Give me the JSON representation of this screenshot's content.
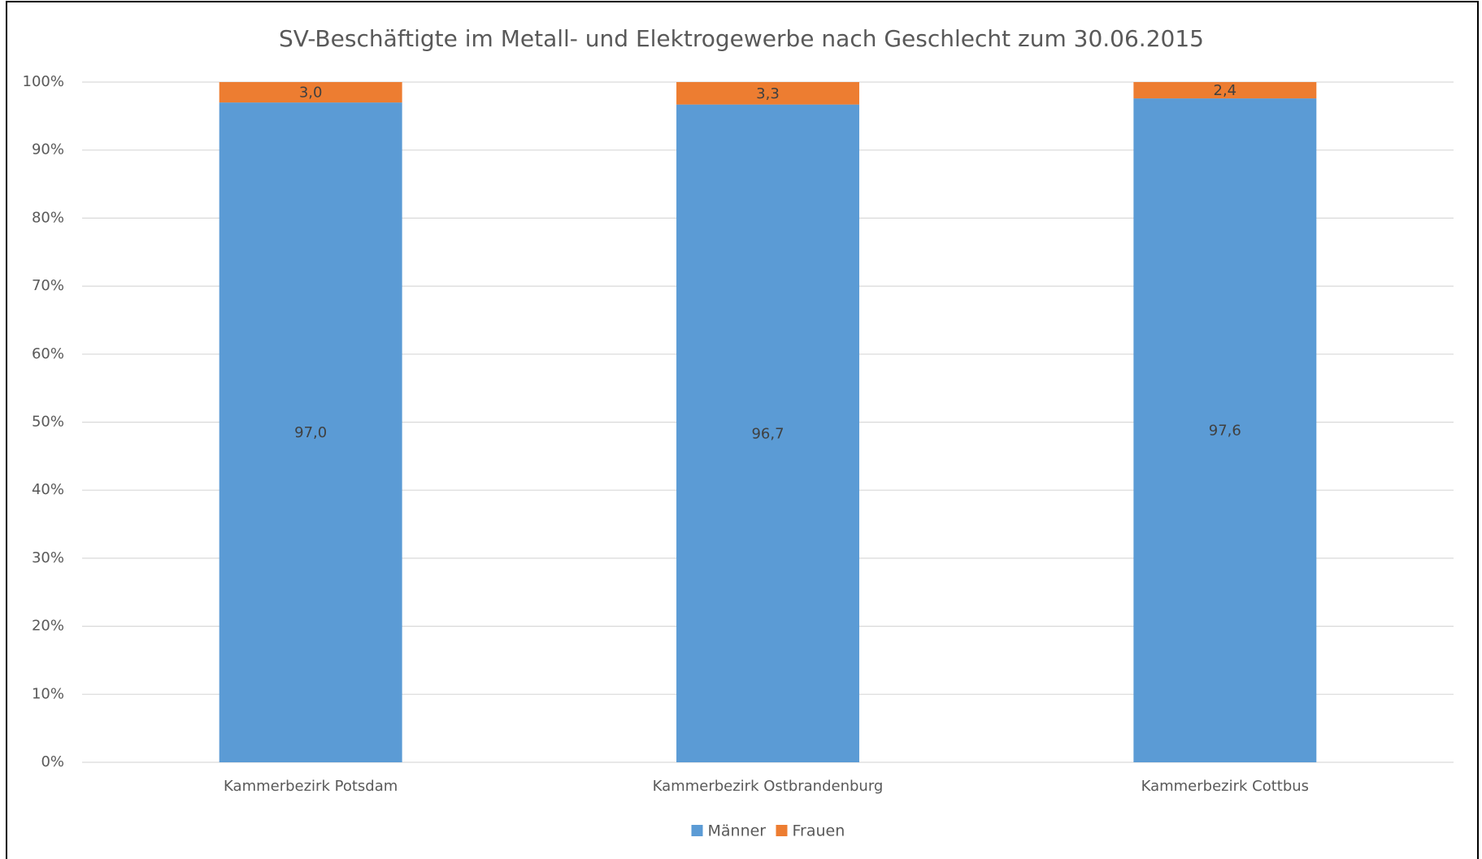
{
  "chart_data": {
    "type": "bar",
    "stacked": true,
    "title": "SV-Beschäftigte im Metall- und Elektrogewerbe nach Geschlecht zum 30.06.2015",
    "categories": [
      "Kammerbezirk Potsdam",
      "Kammerbezirk Ostbrandenburg",
      "Kammerbezirk Cottbus"
    ],
    "series": [
      {
        "name": "Männer",
        "color": "#5b9bd5",
        "values": [
          97.0,
          96.7,
          97.6
        ],
        "value_labels": [
          "97,0",
          "96,7",
          "97,6"
        ]
      },
      {
        "name": "Frauen",
        "color": "#ed7d31",
        "values": [
          3.0,
          3.3,
          2.4
        ],
        "value_labels": [
          "3,0",
          "3,3",
          "2,4"
        ]
      }
    ],
    "ylim": [
      0,
      100
    ],
    "yticks": [
      {
        "value": 0,
        "label": "0%"
      },
      {
        "value": 10,
        "label": "10%"
      },
      {
        "value": 20,
        "label": "20%"
      },
      {
        "value": 30,
        "label": "30%"
      },
      {
        "value": 40,
        "label": "40%"
      },
      {
        "value": 50,
        "label": "50%"
      },
      {
        "value": 60,
        "label": "60%"
      },
      {
        "value": 70,
        "label": "70%"
      },
      {
        "value": 80,
        "label": "80%"
      },
      {
        "value": 90,
        "label": "90%"
      },
      {
        "value": 100,
        "label": "100%"
      }
    ],
    "grid": true,
    "legend": "bottom"
  }
}
